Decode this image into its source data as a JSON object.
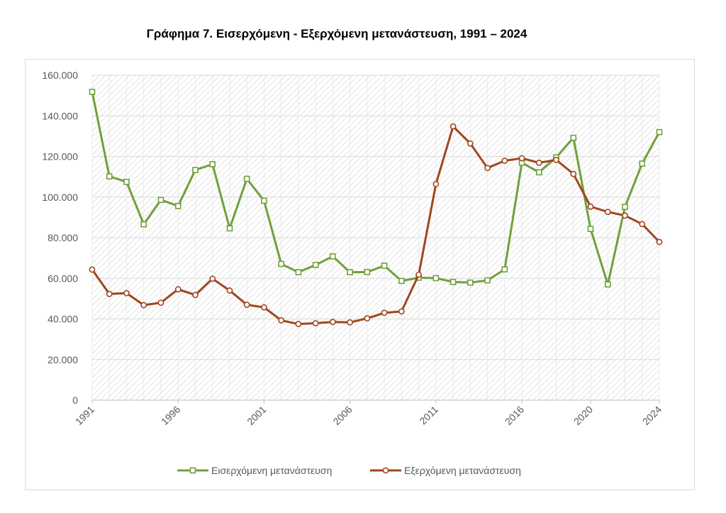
{
  "chart_title": "Γράφημα 7. Εισερχόμενη - Εξερχόμενη μετανάστευση, 1991 – 2024",
  "colors": {
    "inflow": "#70A03C",
    "outflow": "#A0461E",
    "grid": "#d9d9d9"
  },
  "chart_data": {
    "type": "line",
    "title": "Γράφημα 7. Εισερχόμενη - Εξερχόμενη μετανάστευση, 1991 – 2024",
    "x": [
      1991,
      1992,
      1993,
      1994,
      1995,
      1996,
      1997,
      1998,
      1999,
      2000,
      2001,
      2002,
      2003,
      2004,
      2005,
      2006,
      2007,
      2008,
      2009,
      2010,
      2011,
      2012,
      2013,
      2014,
      2015,
      2016,
      2017,
      2018,
      2019,
      2020,
      2021,
      2022,
      2023,
      2024
    ],
    "x_tick_labels": [
      "1991",
      "1996",
      "2001",
      "2006",
      "2011",
      "2016",
      "2020",
      "2024"
    ],
    "x_tick_values": [
      1991,
      1996,
      2001,
      2006,
      2011,
      2016,
      2020,
      2024
    ],
    "y_tick_labels": [
      "0",
      "20.000",
      "40.000",
      "60.000",
      "80.000",
      "100.000",
      "120.000",
      "140.000",
      "160.000"
    ],
    "ylim": [
      0,
      160000
    ],
    "xlim": [
      1991,
      2024
    ],
    "grid": true,
    "legend_position": "bottom",
    "series": [
      {
        "name": "Εισερχόμενη μετανάστευση",
        "color": "#70A03C",
        "marker": "square",
        "values": [
          151800,
          110200,
          107500,
          86600,
          98600,
          95600,
          113300,
          116200,
          84600,
          109000,
          98200,
          67100,
          63000,
          66600,
          70800,
          63000,
          63100,
          66200,
          58700,
          60300,
          60100,
          58200,
          57900,
          59000,
          64400,
          116900,
          112200,
          119500,
          129200,
          84300,
          57000,
          95200,
          116500,
          132000
        ]
      },
      {
        "name": "Εξερχόμενη μετανάστευση",
        "color": "#A0461E",
        "marker": "circle",
        "values": [
          64300,
          52300,
          52700,
          46800,
          48000,
          54600,
          51800,
          59800,
          54000,
          47000,
          45700,
          39300,
          37500,
          37900,
          38500,
          38300,
          40300,
          43000,
          43700,
          61800,
          106400,
          134800,
          126400,
          114300,
          117900,
          119100,
          116900,
          118300,
          111400,
          95300,
          92700,
          90900,
          86700,
          77900
        ]
      }
    ]
  }
}
